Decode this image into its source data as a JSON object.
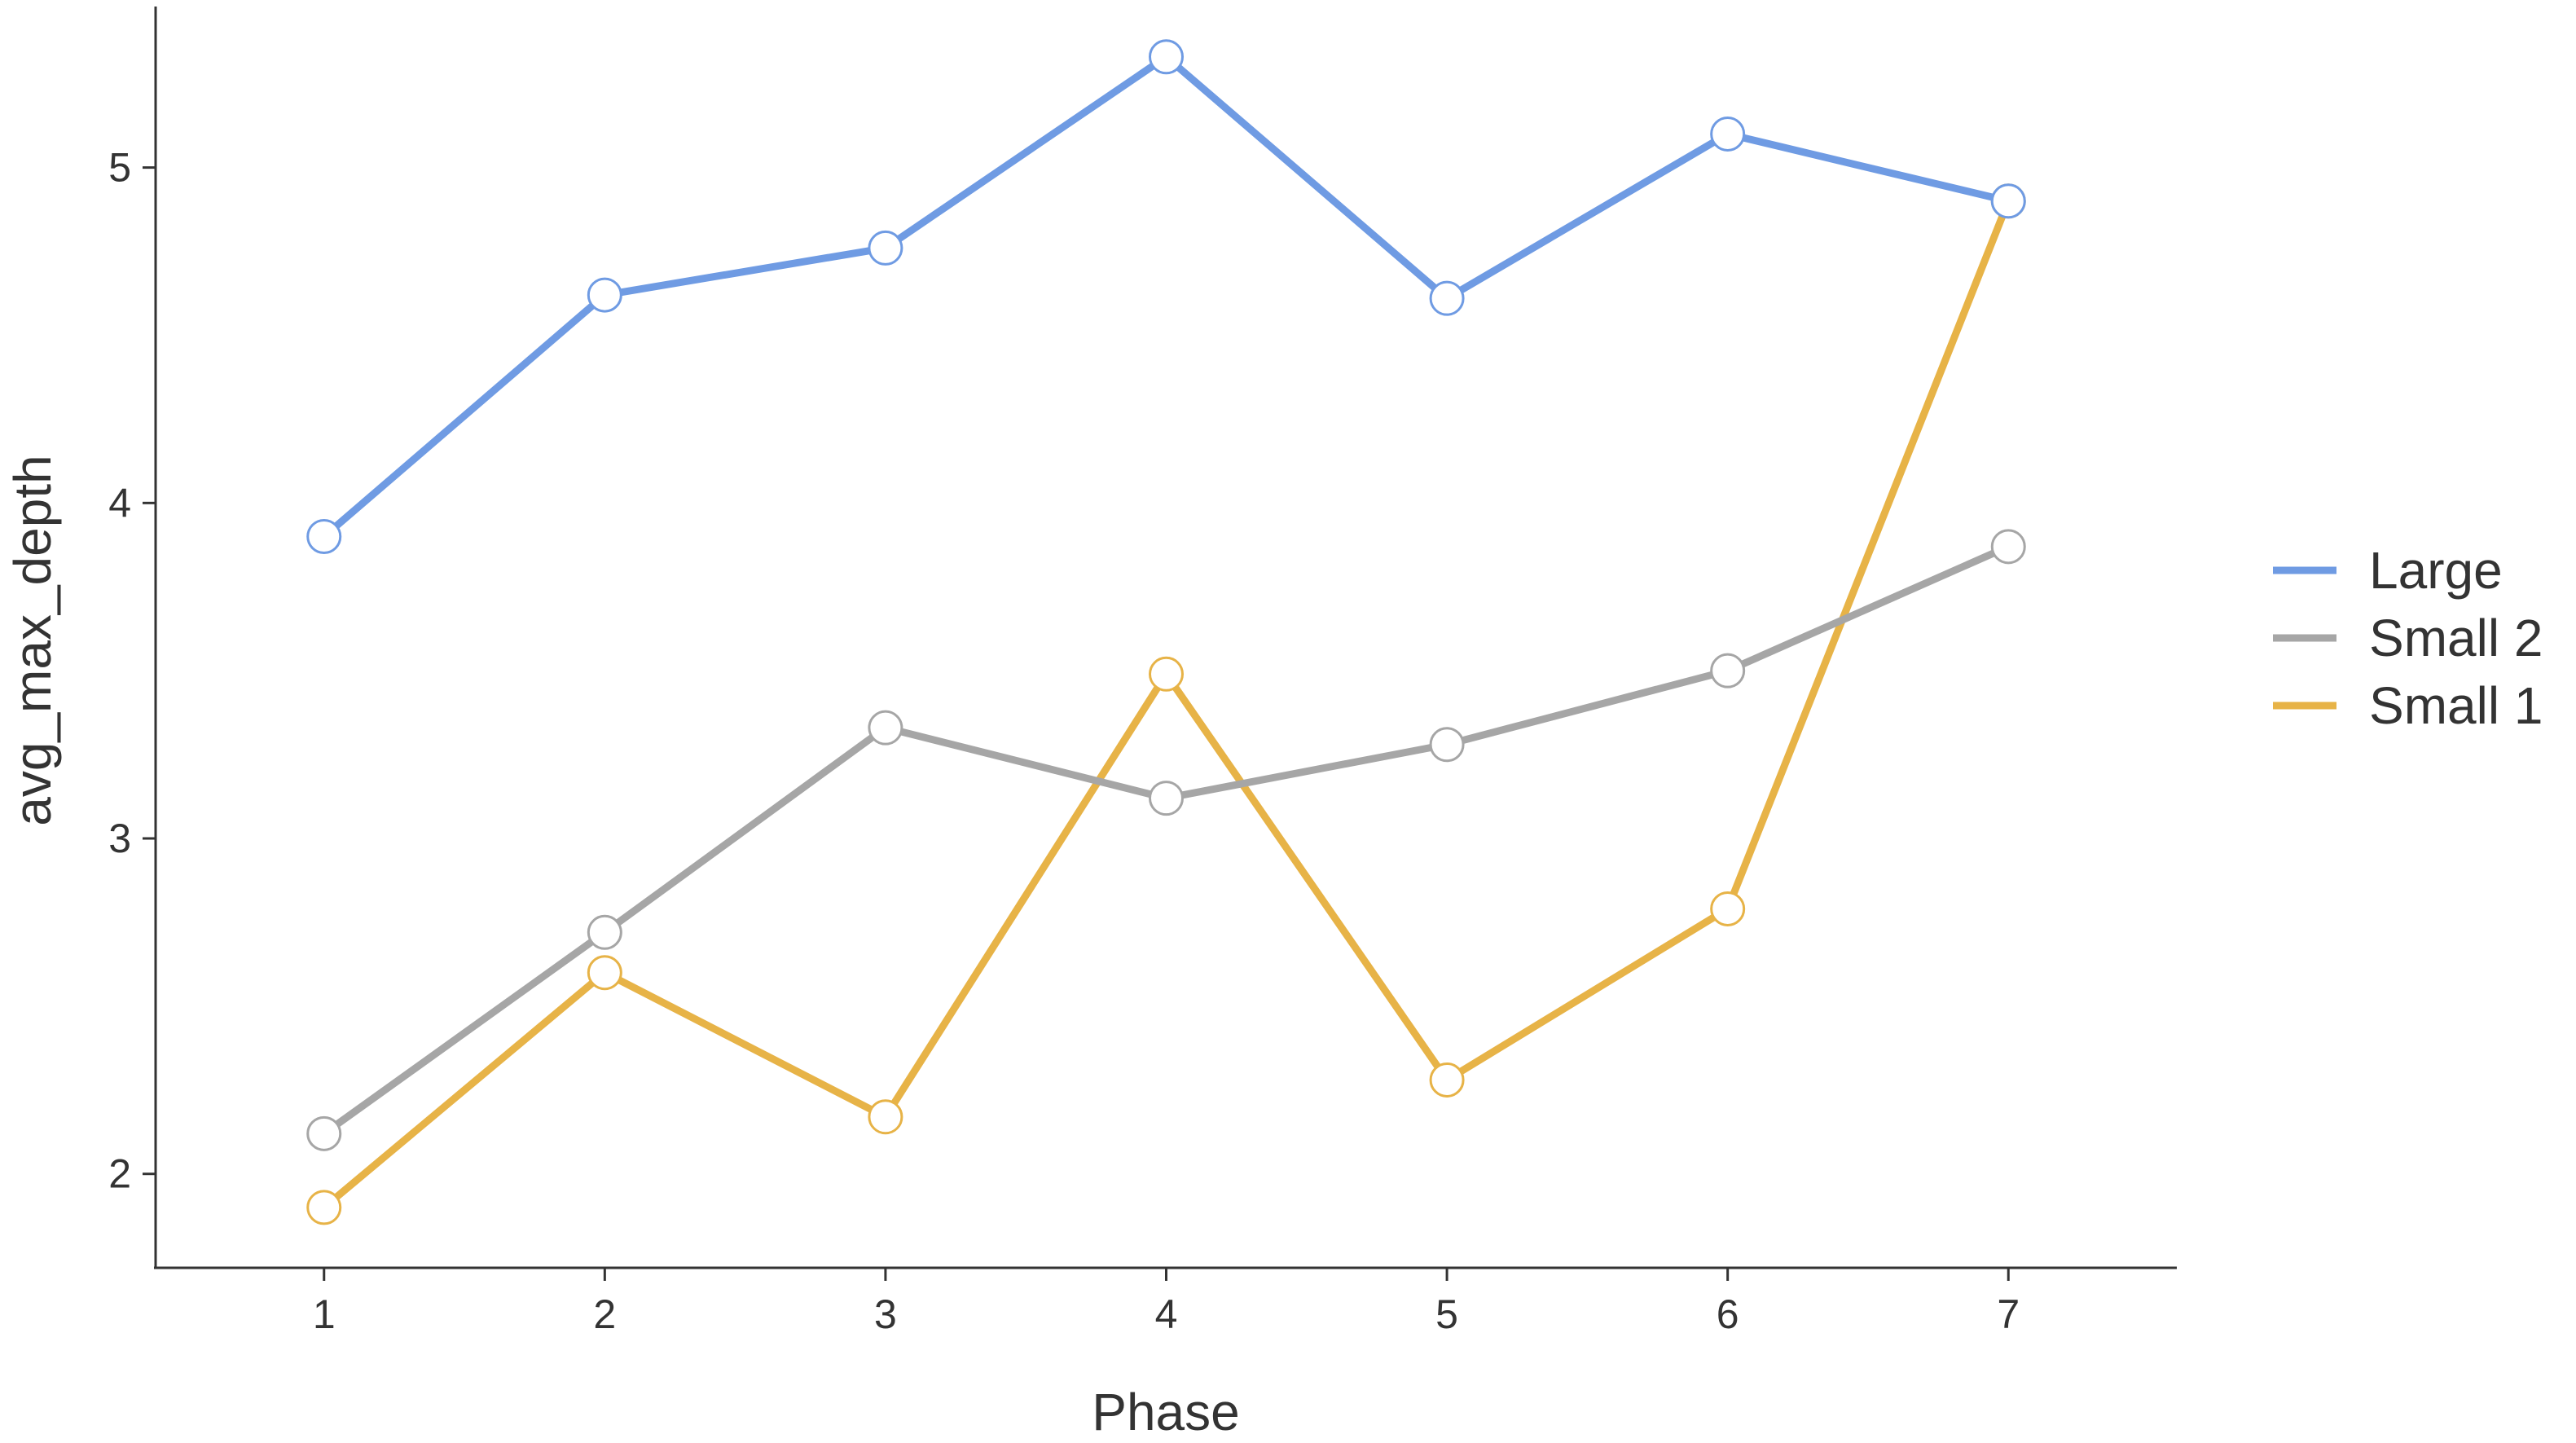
{
  "chart_data": {
    "type": "line",
    "x": [
      1,
      2,
      3,
      4,
      5,
      6,
      7
    ],
    "xlabel": "Phase",
    "ylabel": "avg_max_depth",
    "xticks": [
      1,
      2,
      3,
      4,
      5,
      6,
      7
    ],
    "yticks": [
      2,
      3,
      4,
      5
    ],
    "xlim": [
      0.4,
      7.6
    ],
    "ylim": [
      1.72,
      5.48
    ],
    "grid": false,
    "legend_position": "right",
    "series": [
      {
        "name": "Large",
        "color": "#6f9be3",
        "values": [
          3.9,
          4.62,
          4.76,
          5.33,
          4.61,
          5.1,
          4.9
        ]
      },
      {
        "name": "Small 2",
        "color": "#a6a6a6",
        "values": [
          2.12,
          2.72,
          3.33,
          3.12,
          3.28,
          3.5,
          3.87
        ]
      },
      {
        "name": "Small 1",
        "color": "#e7b347",
        "values": [
          1.9,
          2.6,
          2.17,
          3.49,
          2.28,
          2.79,
          4.9
        ]
      }
    ]
  }
}
